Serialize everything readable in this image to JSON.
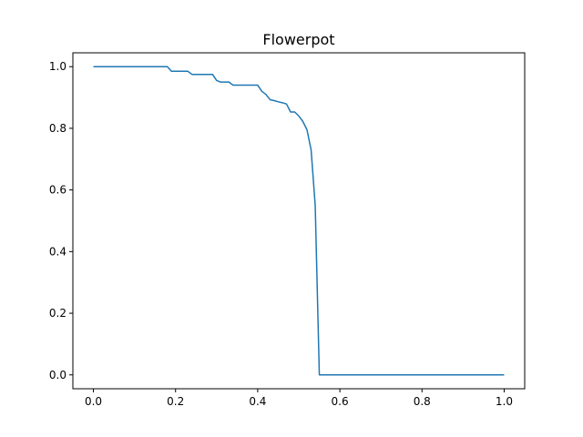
{
  "chart_data": {
    "type": "line",
    "title": "Flowerpot",
    "xlabel": "",
    "ylabel": "",
    "xlim": [
      -0.05,
      1.05
    ],
    "ylim": [
      -0.045,
      1.045
    ],
    "xticks": [
      0.0,
      0.2,
      0.4,
      0.6,
      0.8,
      1.0
    ],
    "xtick_labels": [
      "0.0",
      "0.2",
      "0.4",
      "0.6",
      "0.8",
      "1.0"
    ],
    "yticks": [
      0.0,
      0.2,
      0.4,
      0.6,
      0.8,
      1.0
    ],
    "ytick_labels": [
      "0.0",
      "0.2",
      "0.4",
      "0.6",
      "0.8",
      "1.0"
    ],
    "grid": false,
    "legend": "none",
    "colors": {
      "line": "#1f77b4"
    },
    "series": [
      {
        "x": [
          0.0,
          0.18,
          0.19,
          0.23,
          0.24,
          0.29,
          0.3,
          0.31,
          0.33,
          0.34,
          0.36,
          0.4,
          0.41,
          0.42,
          0.43,
          0.44,
          0.45,
          0.46,
          0.47,
          0.48,
          0.49,
          0.5,
          0.51,
          0.52,
          0.53,
          0.54,
          0.55,
          1.0
        ],
        "y": [
          1.0,
          1.0,
          0.985,
          0.985,
          0.975,
          0.975,
          0.955,
          0.95,
          0.95,
          0.94,
          0.94,
          0.94,
          0.92,
          0.91,
          0.893,
          0.89,
          0.886,
          0.883,
          0.879,
          0.853,
          0.853,
          0.84,
          0.822,
          0.795,
          0.73,
          0.55,
          0.0,
          0.0
        ]
      }
    ]
  }
}
